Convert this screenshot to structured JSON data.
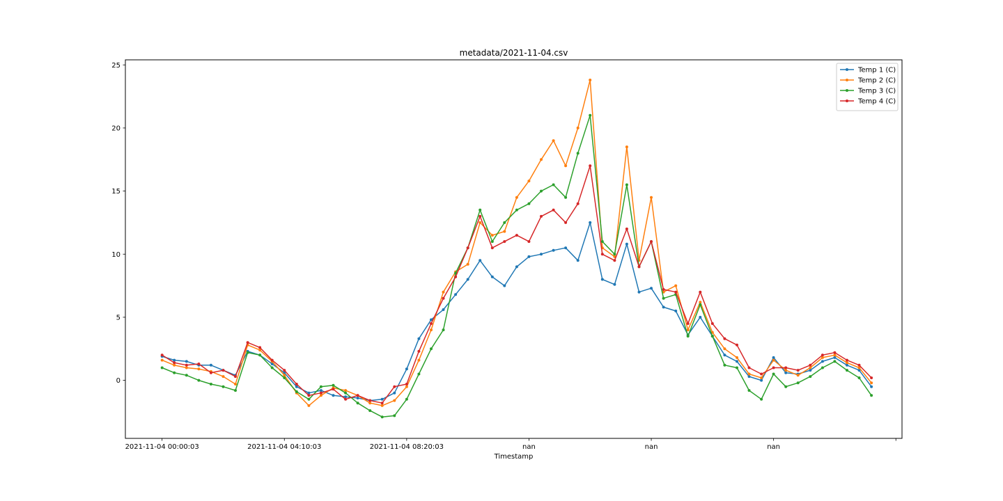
{
  "chart_data": {
    "type": "line",
    "title": "metadata/2021-11-04.csv",
    "xlabel": "Timestamp",
    "ylabel": "",
    "xlim": [
      -0.3,
      6.05
    ],
    "ylim": [
      -4.6,
      25.4
    ],
    "x_ticks": [
      {
        "pos": 0,
        "label": "2021-11-04 00:00:03"
      },
      {
        "pos": 1,
        "label": "2021-11-04 04:10:03"
      },
      {
        "pos": 2,
        "label": "2021-11-04 08:20:03"
      },
      {
        "pos": 3,
        "label": "nan"
      },
      {
        "pos": 4,
        "label": "nan"
      },
      {
        "pos": 5,
        "label": "nan"
      },
      {
        "pos": 6,
        "label": ""
      }
    ],
    "y_ticks": [
      0,
      5,
      10,
      15,
      20,
      25
    ],
    "grid": false,
    "legend_position": "upper-right",
    "x": [
      0,
      0.1,
      0.2,
      0.3,
      0.4,
      0.5,
      0.6,
      0.7,
      0.8,
      0.9,
      1.0,
      1.1,
      1.2,
      1.3,
      1.4,
      1.5,
      1.6,
      1.7,
      1.8,
      1.9,
      2.0,
      2.1,
      2.2,
      2.3,
      2.4,
      2.5,
      2.6,
      2.7,
      2.8,
      2.9,
      3.0,
      3.1,
      3.2,
      3.3,
      3.4,
      3.5,
      3.6,
      3.7,
      3.8,
      3.9,
      4.0,
      4.1,
      4.2,
      4.3,
      4.4,
      4.5,
      4.6,
      4.7,
      4.8,
      4.9,
      5.0,
      5.1,
      5.2,
      5.3,
      5.4,
      5.5,
      5.6,
      5.7,
      5.8
    ],
    "series": [
      {
        "name": "Temp 1 (C)",
        "color": "#1f77b4",
        "values": [
          1.9,
          1.6,
          1.5,
          1.2,
          1.2,
          0.8,
          0.4,
          2.3,
          2.0,
          1.3,
          0.6,
          -0.5,
          -1.0,
          -0.8,
          -1.2,
          -1.3,
          -1.4,
          -1.6,
          -1.5,
          -1.0,
          0.9,
          3.3,
          4.8,
          5.6,
          6.8,
          8.0,
          9.5,
          8.2,
          7.5,
          9.0,
          9.8,
          10.0,
          10.3,
          10.5,
          9.5,
          12.5,
          8.0,
          7.6,
          10.8,
          7.0,
          7.3,
          5.8,
          5.5,
          3.6,
          5.0,
          3.5,
          2.0,
          1.5,
          0.3,
          0.0,
          1.8,
          0.6,
          0.5,
          0.8,
          1.5,
          1.8,
          1.2,
          0.8,
          -0.5
        ]
      },
      {
        "name": "Temp 2 (C)",
        "color": "#ff7f0e",
        "values": [
          1.6,
          1.2,
          1.0,
          0.9,
          0.7,
          0.3,
          -0.3,
          2.8,
          2.4,
          1.5,
          0.4,
          -1.0,
          -2.0,
          -1.2,
          -0.6,
          -0.8,
          -1.2,
          -1.8,
          -2.0,
          -1.6,
          -0.5,
          1.6,
          4.0,
          7.0,
          8.6,
          9.2,
          12.5,
          11.5,
          11.8,
          14.5,
          15.8,
          17.5,
          19.0,
          17.0,
          20.0,
          23.8,
          10.5,
          9.8,
          18.5,
          9.5,
          14.5,
          7.0,
          7.5,
          4.0,
          6.2,
          3.8,
          2.5,
          1.8,
          0.5,
          0.2,
          1.6,
          0.8,
          0.4,
          1.0,
          1.8,
          2.0,
          1.4,
          1.0,
          -0.2
        ]
      },
      {
        "name": "Temp 3 (C)",
        "color": "#2ca02c",
        "values": [
          1.0,
          0.6,
          0.4,
          0.0,
          -0.3,
          -0.5,
          -0.8,
          2.2,
          2.0,
          1.0,
          0.2,
          -0.9,
          -1.5,
          -0.5,
          -0.4,
          -1.0,
          -1.8,
          -2.4,
          -2.9,
          -2.8,
          -1.5,
          0.5,
          2.5,
          4.0,
          8.5,
          10.5,
          13.5,
          11.0,
          12.5,
          13.5,
          14.0,
          15.0,
          15.5,
          14.5,
          18.0,
          21.0,
          11.0,
          10.0,
          15.5,
          9.0,
          11.0,
          6.5,
          6.8,
          3.5,
          6.0,
          3.5,
          1.2,
          1.0,
          -0.8,
          -1.5,
          0.5,
          -0.5,
          -0.2,
          0.3,
          1.0,
          1.5,
          0.8,
          0.2,
          -1.2
        ]
      },
      {
        "name": "Temp 4 (C)",
        "color": "#d62728",
        "values": [
          2.0,
          1.4,
          1.2,
          1.3,
          0.6,
          0.8,
          0.3,
          3.0,
          2.6,
          1.6,
          0.8,
          -0.3,
          -1.2,
          -1.0,
          -0.7,
          -1.5,
          -1.2,
          -1.6,
          -1.8,
          -0.5,
          -0.3,
          2.3,
          4.5,
          6.5,
          8.2,
          10.5,
          13.0,
          10.5,
          11.0,
          11.5,
          11.0,
          13.0,
          13.5,
          12.5,
          14.0,
          17.0,
          10.0,
          9.5,
          12.0,
          9.0,
          11.0,
          7.2,
          7.0,
          4.5,
          7.0,
          4.5,
          3.3,
          2.8,
          1.0,
          0.5,
          1.0,
          1.0,
          0.8,
          1.2,
          2.0,
          2.2,
          1.6,
          1.2,
          0.2
        ]
      }
    ]
  }
}
